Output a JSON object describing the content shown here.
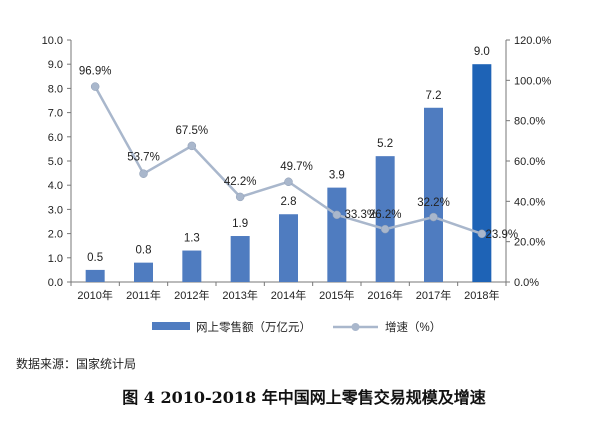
{
  "chart_data": {
    "type": "bar+line",
    "categories": [
      "2010年",
      "2011年",
      "2012年",
      "2013年",
      "2014年",
      "2015年",
      "2016年",
      "2017年",
      "2018年"
    ],
    "series": [
      {
        "name": "网上零售额（万亿元）",
        "type": "bar",
        "axis": "left",
        "values": [
          0.5,
          0.8,
          1.3,
          1.9,
          2.8,
          3.9,
          5.2,
          7.2,
          9.0
        ],
        "labels": [
          "0.5",
          "0.8",
          "1.3",
          "1.9",
          "2.8",
          "3.9",
          "5.2",
          "7.2",
          "9.0"
        ]
      },
      {
        "name": "增速（%）",
        "type": "line",
        "axis": "right",
        "values": [
          96.9,
          53.7,
          67.5,
          42.2,
          49.7,
          33.3,
          26.2,
          32.2,
          23.9
        ],
        "labels": [
          "96.9%",
          "53.7%",
          "67.5%",
          "42.2%",
          "49.7%",
          "33.3%",
          "26.2%",
          "32.2%",
          "23.9%"
        ]
      }
    ],
    "left_axis": {
      "min": 0,
      "max": 10,
      "ticks": [
        "0.0",
        "1.0",
        "2.0",
        "3.0",
        "4.0",
        "5.0",
        "6.0",
        "7.0",
        "8.0",
        "9.0",
        "10.0"
      ]
    },
    "right_axis": {
      "min": 0,
      "max": 120,
      "ticks": [
        "0.0%",
        "20.0%",
        "40.0%",
        "60.0%",
        "80.0%",
        "100.0%",
        "120.0%"
      ]
    },
    "legend": [
      "网上零售额（万亿元）",
      "增速（%）"
    ],
    "legend_position": "bottom",
    "colors": {
      "bar": "#4f7cc0",
      "bar_last": "#1e63b6",
      "line": "#a9b7cc",
      "axis": "#777777",
      "text": "#222222"
    }
  },
  "source_text": "数据来源：国家统计局",
  "caption": "图 4  2010-2018 年中国网上零售交易规模及增速"
}
